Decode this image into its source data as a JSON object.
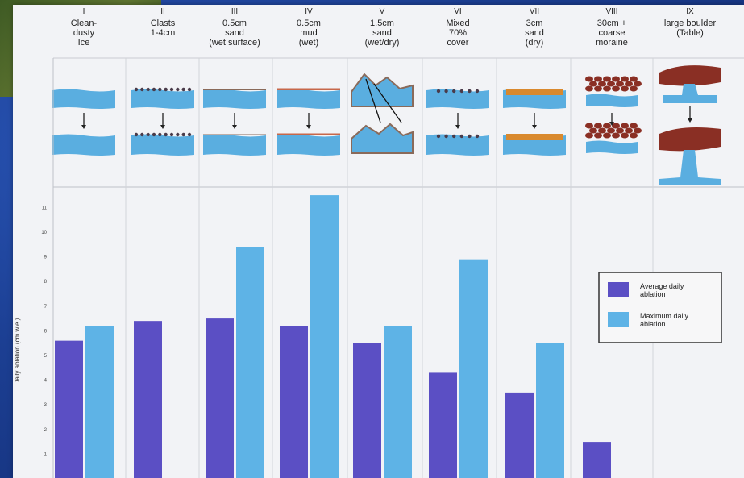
{
  "headers": [
    {
      "numeral": "I",
      "lines": [
        "Clean-",
        "dusty",
        "Ice"
      ]
    },
    {
      "numeral": "II",
      "lines": [
        "Clasts",
        "1-4cm"
      ]
    },
    {
      "numeral": "III",
      "lines": [
        "0.5cm",
        "sand",
        "(wet surface)"
      ]
    },
    {
      "numeral": "IV",
      "lines": [
        "0.5cm",
        "mud",
        "(wet)"
      ]
    },
    {
      "numeral": "V",
      "lines": [
        "1.5cm",
        "sand",
        "(wet/dry)"
      ]
    },
    {
      "numeral": "VI",
      "lines": [
        "Mixed",
        "70%",
        "cover"
      ]
    },
    {
      "numeral": "VII",
      "lines": [
        "3cm",
        "sand",
        "(dry)"
      ]
    },
    {
      "numeral": "VIII",
      "lines": [
        "30cm +",
        "coarse",
        "moraine"
      ]
    },
    {
      "numeral": "IX",
      "lines": [
        "large boulder",
        "(Table)"
      ]
    }
  ],
  "colors": {
    "ice": "#5aaee0",
    "average": "#5b4fc4",
    "maximum": "#5eb3e6",
    "sand": "#d9892e",
    "boulder": "#8a2f24",
    "debris": "#4a3b4a"
  },
  "chart_data": {
    "type": "bar",
    "categories": [
      "I",
      "II",
      "III",
      "IV",
      "V",
      "VI",
      "VII",
      "VIII",
      "IX"
    ],
    "series": [
      {
        "name": "Average daily ablation",
        "values": [
          5.6,
          6.4,
          6.5,
          6.2,
          5.5,
          4.3,
          3.5,
          1.5,
          null
        ]
      },
      {
        "name": "Maximum daily ablation",
        "values": [
          6.2,
          null,
          9.4,
          11.5,
          6.2,
          8.9,
          5.5,
          null,
          null
        ]
      }
    ],
    "ylabel": "Daily ablation (cm w.e.)",
    "ylim": [
      0,
      12
    ],
    "yticks": [
      "1",
      "2",
      "3",
      "4",
      "5",
      "6",
      "7",
      "8",
      "9",
      "10",
      "11"
    ],
    "legend_position": "right",
    "legend": [
      {
        "key": "average",
        "line1": "Average daily",
        "line2": "ablation"
      },
      {
        "key": "maximum",
        "line1": "Maximum daily",
        "line2": "ablation"
      }
    ]
  }
}
